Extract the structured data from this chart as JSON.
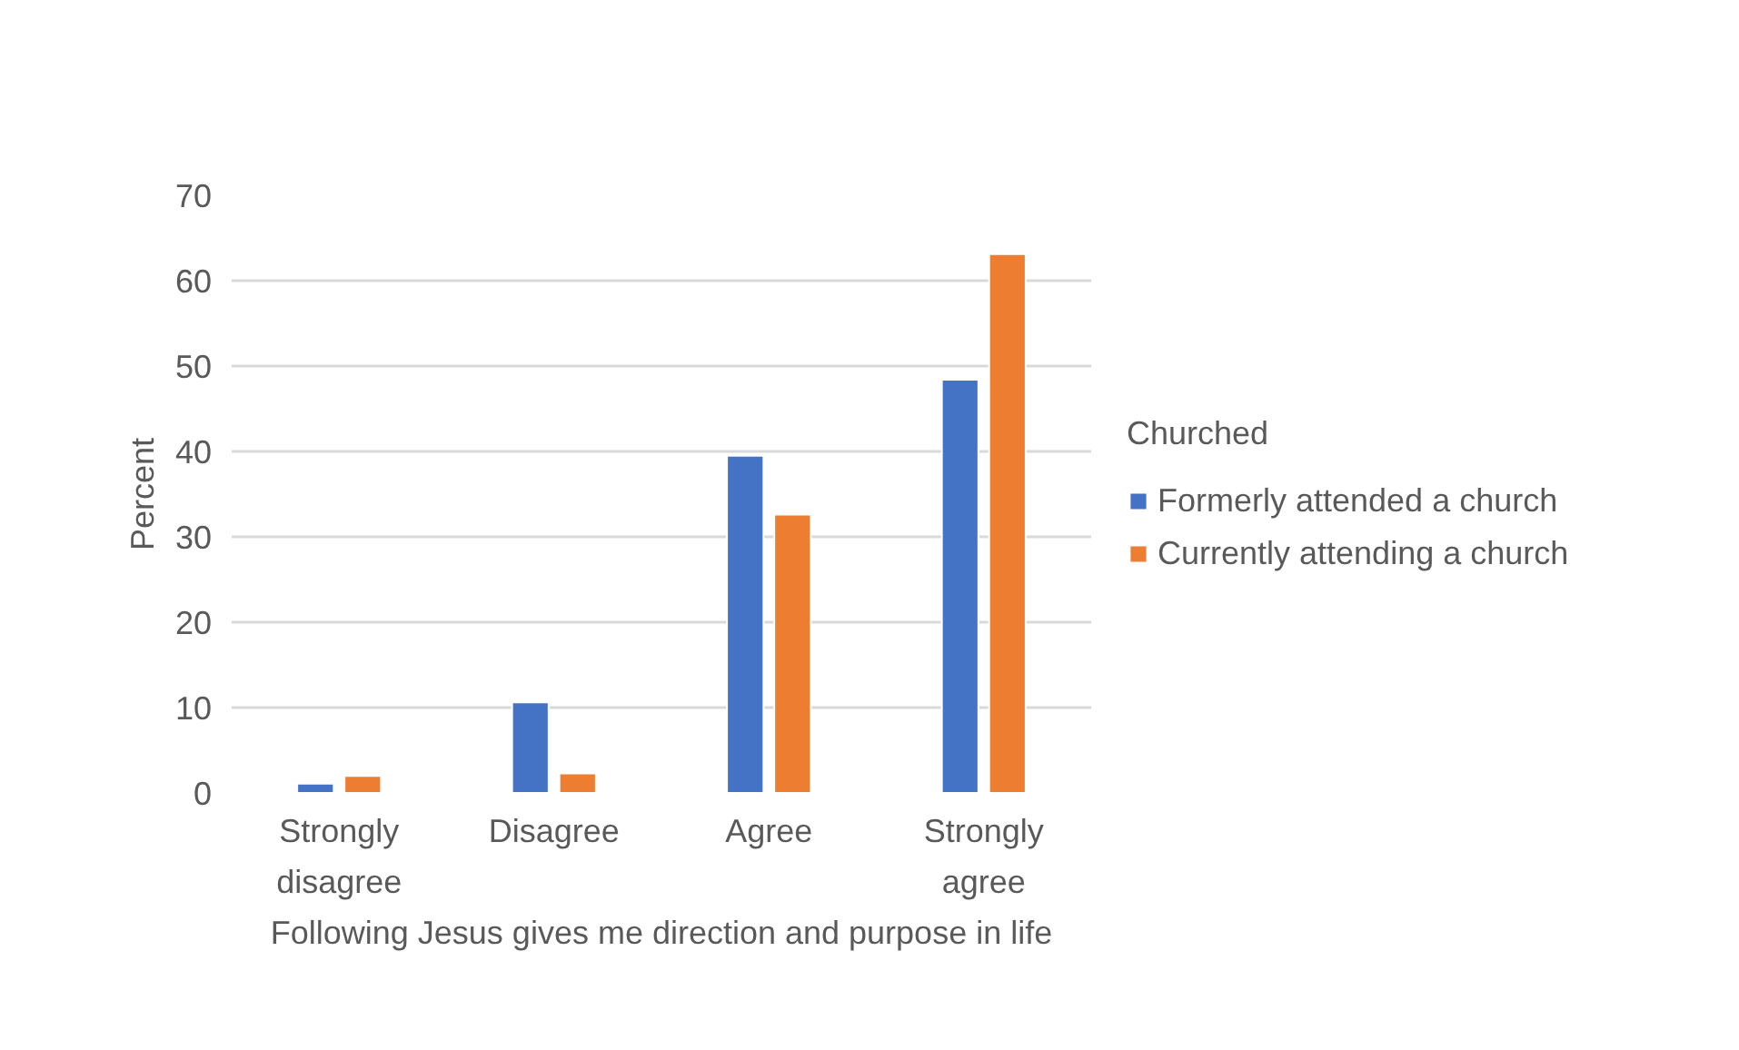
{
  "chart_data": {
    "type": "bar",
    "xlabel": "Following Jesus gives me direction and purpose in life",
    "ylabel": "Percent",
    "legend_title": "Churched",
    "categories": [
      "Strongly disagree",
      "Disagree",
      "Agree",
      "Strongly agree"
    ],
    "series": [
      {
        "name": "Formerly attended a church",
        "color": "#4472c4",
        "values": [
          1.1,
          10.6,
          39.5,
          48.4
        ]
      },
      {
        "name": "Currently attending a church",
        "color": "#ed7d31",
        "values": [
          2.0,
          2.3,
          32.6,
          63.1
        ]
      }
    ],
    "ylim": [
      0,
      70
    ],
    "yticks": [
      0,
      10,
      20,
      30,
      40,
      50,
      60,
      70
    ],
    "grid": "y",
    "legend": "right"
  }
}
